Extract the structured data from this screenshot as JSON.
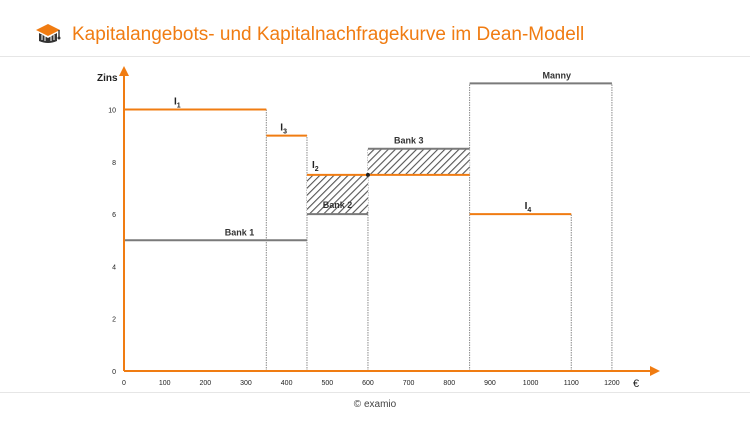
{
  "header": {
    "title": "Kapitalangebots- und Kapitalnachfragekurve im Dean-Modell",
    "logo_icon": "examio-book-logo-icon"
  },
  "footer": {
    "text": "© examio"
  },
  "colors": {
    "accent": "#f07c12",
    "supply": "#7a7a7a",
    "hatch": "#555555"
  },
  "chart_data": {
    "type": "step",
    "title": "",
    "xlabel": "€",
    "ylabel": "Zins",
    "xlim": [
      0,
      1300
    ],
    "ylim": [
      0,
      11.5
    ],
    "x_ticks": [
      0,
      100,
      200,
      300,
      400,
      500,
      600,
      700,
      800,
      900,
      1000,
      1100,
      1200
    ],
    "y_ticks": [
      0,
      2,
      4,
      6,
      8,
      10
    ],
    "demand": [
      {
        "name": "I",
        "sub": "1",
        "x0": 0,
        "x1": 350,
        "y": 10
      },
      {
        "name": "I",
        "sub": "3",
        "x0": 350,
        "x1": 450,
        "y": 9
      },
      {
        "name": "I",
        "sub": "2",
        "x0": 450,
        "x1": 850,
        "y": 7.5
      },
      {
        "name": "I",
        "sub": "4",
        "x0": 850,
        "x1": 1100,
        "y": 6
      }
    ],
    "supply": [
      {
        "name": "Bank 1",
        "x0": 0,
        "x1": 450,
        "y": 5
      },
      {
        "name": "Bank 2",
        "x0": 450,
        "x1": 600,
        "y": 6
      },
      {
        "name": "Bank 3",
        "x0": 600,
        "x1": 850,
        "y": 8.5
      },
      {
        "name": "Manny",
        "x0": 850,
        "x1": 1200,
        "y": 11
      }
    ],
    "hatched_areas": [
      {
        "x0": 450,
        "x1": 600,
        "y0": 6,
        "y1": 7.5
      },
      {
        "x0": 600,
        "x1": 850,
        "y0": 7.5,
        "y1": 8.5
      }
    ],
    "equilibrium_point": {
      "x": 600,
      "y": 7.5
    }
  }
}
